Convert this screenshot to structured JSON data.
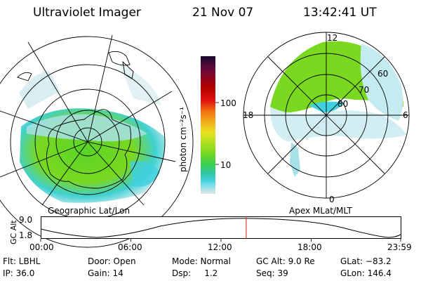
{
  "header": {
    "instrument": "Ultraviolet Imager",
    "date": "21 Nov 07",
    "time": "13:42:41 UT"
  },
  "left_panel": {
    "caption": "Geographic Lat/Lon"
  },
  "right_panel": {
    "caption": "Apex MLat/MLT",
    "mlt_labels": {
      "top": "12",
      "left": "18",
      "right": "6",
      "bottom": "0"
    },
    "mlat_labels": [
      "60",
      "70",
      "80"
    ]
  },
  "colorbar": {
    "unit_label": "photon cm⁻²s⁻¹",
    "ticks": [
      "100",
      "10"
    ],
    "colors": [
      "#1a0a2e",
      "#6a0a3a",
      "#b00000",
      "#e01010",
      "#f07010",
      "#f2b020",
      "#e8e020",
      "#b8e020",
      "#7ad820",
      "#3cd04a",
      "#30c8a0",
      "#40d0e0",
      "#90e0ea",
      "#e4e4e4"
    ]
  },
  "timeline": {
    "ylabel": "GC Alt",
    "ymax": "9.0",
    "ymin": "1.8",
    "ticks": [
      "00:00",
      "06:00",
      "12:00",
      "18:00",
      "23:59"
    ],
    "current_time_fraction": 0.571
  },
  "info": {
    "row1": {
      "flt": "Flt: LBHL",
      "door": "Door: Open",
      "mode": "Mode: Normal",
      "gcalt": "GC Alt: 9.0 Re",
      "glat": "GLat: −83.2"
    },
    "row2": {
      "ip": "IP: 36.0",
      "gain": "Gain: 14",
      "dsp": "Dsp:     1.2",
      "seq": "Seq: 39",
      "glon": "GLon: 146.4"
    }
  }
}
